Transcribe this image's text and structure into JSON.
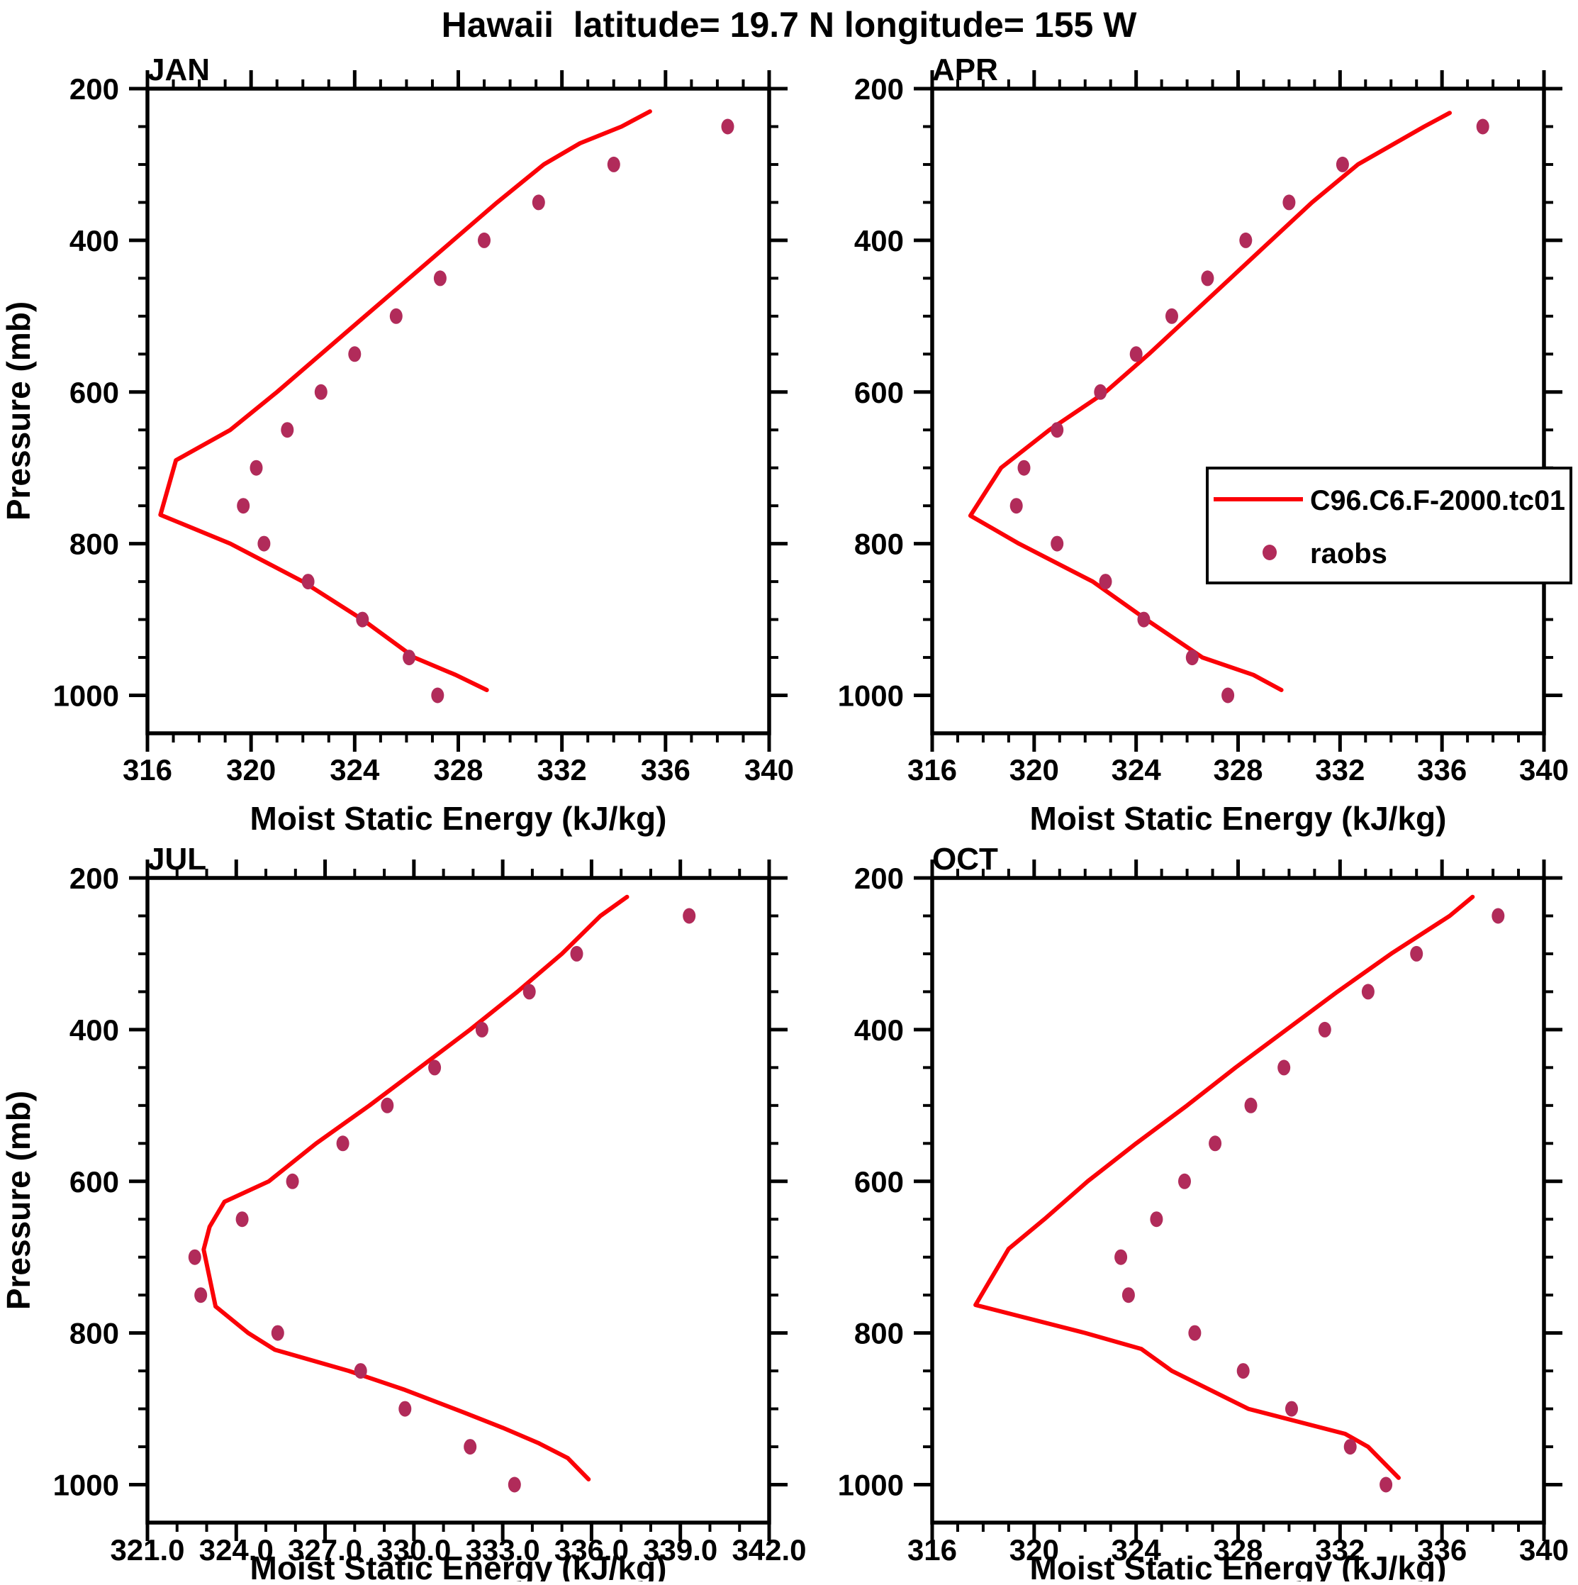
{
  "title": "Hawaii  latitude= 19.7 N longitude= 155 W",
  "colors": {
    "model_line": "#fb0007",
    "obs_marker": "#b12b5a",
    "axis": "#000000",
    "background": "#ffffff"
  },
  "legend": {
    "entries": [
      {
        "label": "C96.C6.F-2000.tc01",
        "type": "line",
        "color": "#fb0007"
      },
      {
        "label": "raobs",
        "type": "marker",
        "color": "#b12b5a"
      }
    ]
  },
  "chart_data": [
    {
      "type": "line",
      "title": "JAN",
      "xlabel": "Moist Static Energy (kJ/kg)",
      "ylabel": "Pressure (mb)",
      "xlim": [
        316,
        340
      ],
      "xtick_labels": [
        "316",
        "320",
        "324",
        "328",
        "332",
        "336",
        "340"
      ],
      "xtick_values": [
        316,
        320,
        324,
        328,
        332,
        336,
        340
      ],
      "xminor_step": 1,
      "ylim": [
        200,
        1050
      ],
      "ytick_labels": [
        "200",
        "400",
        "600",
        "800",
        "1000"
      ],
      "ytick_values": [
        200,
        400,
        600,
        800,
        1000
      ],
      "yminor_step": 50,
      "y_inverted": true,
      "grid": false,
      "show_legend": false,
      "series": [
        {
          "name": "C96.C6.F-2000.tc01",
          "type": "line",
          "points": [
            [
              230,
              335.4
            ],
            [
              250,
              334.3
            ],
            [
              272,
              332.7
            ],
            [
              300,
              331.3
            ],
            [
              350,
              329.5
            ],
            [
              400,
              327.8
            ],
            [
              450,
              326.1
            ],
            [
              500,
              324.4
            ],
            [
              550,
              322.7
            ],
            [
              600,
              321.0
            ],
            [
              650,
              319.2
            ],
            [
              690,
              317.1
            ],
            [
              762,
              316.5
            ],
            [
              800,
              319.2
            ],
            [
              850,
              322.0
            ],
            [
              900,
              324.3
            ],
            [
              950,
              326.3
            ],
            [
              973,
              327.9
            ],
            [
              993,
              329.1
            ]
          ]
        },
        {
          "name": "raobs",
          "type": "scatter",
          "pressures": [
            250,
            300,
            350,
            400,
            450,
            500,
            550,
            600,
            650,
            700,
            750,
            800,
            850,
            900,
            950,
            1000
          ],
          "values": [
            338.4,
            334.0,
            331.1,
            329.0,
            327.3,
            325.6,
            324.0,
            322.7,
            321.4,
            320.2,
            319.7,
            320.5,
            322.2,
            324.3,
            326.1,
            327.2
          ]
        }
      ]
    },
    {
      "type": "line",
      "title": "APR",
      "xlabel": "Moist Static Energy (kJ/kg)",
      "ylabel": "Pressure (mb)",
      "xlim": [
        316,
        340
      ],
      "xtick_labels": [
        "316",
        "320",
        "324",
        "328",
        "332",
        "336",
        "340"
      ],
      "xtick_values": [
        316,
        320,
        324,
        328,
        332,
        336,
        340
      ],
      "xminor_step": 1,
      "ylim": [
        200,
        1050
      ],
      "ytick_labels": [
        "200",
        "400",
        "600",
        "800",
        "1000"
      ],
      "ytick_values": [
        200,
        400,
        600,
        800,
        1000
      ],
      "yminor_step": 50,
      "y_inverted": true,
      "grid": false,
      "show_legend": true,
      "series": [
        {
          "name": "C96.C6.F-2000.tc01",
          "type": "line",
          "points": [
            [
              232,
              336.3
            ],
            [
              250,
              335.3
            ],
            [
              300,
              332.7
            ],
            [
              350,
              330.9
            ],
            [
              400,
              329.3
            ],
            [
              450,
              327.7
            ],
            [
              500,
              326.1
            ],
            [
              550,
              324.5
            ],
            [
              600,
              322.8
            ],
            [
              650,
              320.6
            ],
            [
              700,
              318.7
            ],
            [
              763,
              317.5
            ],
            [
              800,
              319.4
            ],
            [
              850,
              322.3
            ],
            [
              900,
              324.4
            ],
            [
              950,
              326.6
            ],
            [
              973,
              328.6
            ],
            [
              993,
              329.7
            ]
          ]
        },
        {
          "name": "raobs",
          "type": "scatter",
          "pressures": [
            250,
            300,
            350,
            400,
            450,
            500,
            550,
            600,
            650,
            700,
            750,
            800,
            850,
            900,
            950,
            1000
          ],
          "values": [
            337.6,
            332.1,
            330.0,
            328.3,
            326.8,
            325.4,
            324.0,
            322.6,
            320.9,
            319.6,
            319.3,
            320.9,
            322.8,
            324.3,
            326.2,
            327.6
          ]
        }
      ]
    },
    {
      "type": "line",
      "title": "JUL",
      "xlabel": "Moist Static Energy (kJ/kg)",
      "ylabel": "Pressure (mb)",
      "xlim": [
        321,
        342
      ],
      "xtick_labels": [
        "321.0",
        "324.0",
        "327.0",
        "330.0",
        "333.0",
        "336.0",
        "339.0",
        "342.0"
      ],
      "xtick_values": [
        321,
        324,
        327,
        330,
        333,
        336,
        339,
        342
      ],
      "xminor_step": 1,
      "ylim": [
        200,
        1050
      ],
      "ytick_labels": [
        "200",
        "400",
        "600",
        "800",
        "1000"
      ],
      "ytick_values": [
        200,
        400,
        600,
        800,
        1000
      ],
      "yminor_step": 50,
      "y_inverted": true,
      "grid": false,
      "show_legend": false,
      "series": [
        {
          "name": "C96.C6.F-2000.tc01",
          "type": "line",
          "points": [
            [
              225,
              337.2
            ],
            [
              250,
              336.3
            ],
            [
              300,
              335.0
            ],
            [
              350,
              333.5
            ],
            [
              400,
              331.9
            ],
            [
              450,
              330.2
            ],
            [
              500,
              328.5
            ],
            [
              550,
              326.7
            ],
            [
              600,
              325.1
            ],
            [
              627,
              323.6
            ],
            [
              660,
              323.1
            ],
            [
              690,
              322.9
            ],
            [
              765,
              323.3
            ],
            [
              800,
              324.4
            ],
            [
              822,
              325.3
            ],
            [
              850,
              327.8
            ],
            [
              875,
              329.7
            ],
            [
              905,
              331.7
            ],
            [
              925,
              333.0
            ],
            [
              945,
              334.2
            ],
            [
              965,
              335.2
            ],
            [
              993,
              335.9
            ]
          ]
        },
        {
          "name": "raobs",
          "type": "scatter",
          "pressures": [
            250,
            300,
            350,
            400,
            450,
            500,
            550,
            600,
            650,
            700,
            750,
            800,
            850,
            900,
            950,
            1000
          ],
          "values": [
            339.3,
            335.5,
            333.9,
            332.3,
            330.7,
            329.1,
            327.6,
            325.9,
            324.2,
            322.6,
            322.8,
            325.4,
            328.2,
            329.7,
            331.9,
            333.4
          ]
        }
      ]
    },
    {
      "type": "line",
      "title": "OCT",
      "xlabel": "Moist Static Energy (kJ/kg)",
      "ylabel": "Pressure (mb)",
      "xlim": [
        316,
        340
      ],
      "xtick_labels": [
        "316",
        "320",
        "324",
        "328",
        "332",
        "336",
        "340"
      ],
      "xtick_values": [
        316,
        320,
        324,
        328,
        332,
        336,
        340
      ],
      "xminor_step": 1,
      "ylim": [
        200,
        1050
      ],
      "ytick_labels": [
        "200",
        "400",
        "600",
        "800",
        "1000"
      ],
      "ytick_values": [
        200,
        400,
        600,
        800,
        1000
      ],
      "yminor_step": 50,
      "y_inverted": true,
      "grid": false,
      "show_legend": false,
      "series": [
        {
          "name": "C96.C6.F-2000.tc01",
          "type": "line",
          "points": [
            [
              225,
              337.2
            ],
            [
              250,
              336.3
            ],
            [
              300,
              334.0
            ],
            [
              350,
              331.9
            ],
            [
              400,
              329.9
            ],
            [
              450,
              327.9
            ],
            [
              500,
              326.0
            ],
            [
              550,
              324.0
            ],
            [
              600,
              322.1
            ],
            [
              650,
              320.4
            ],
            [
              689,
              319.0
            ],
            [
              763,
              317.7
            ],
            [
              800,
              322.0
            ],
            [
              821,
              324.2
            ],
            [
              850,
              325.4
            ],
            [
              900,
              328.4
            ],
            [
              933,
              332.2
            ],
            [
              950,
              333.1
            ],
            [
              991,
              334.3
            ]
          ]
        },
        {
          "name": "raobs",
          "type": "scatter",
          "pressures": [
            250,
            300,
            350,
            400,
            450,
            500,
            550,
            600,
            650,
            700,
            750,
            800,
            850,
            900,
            950,
            1000
          ],
          "values": [
            338.2,
            335.0,
            333.1,
            331.4,
            329.8,
            328.5,
            327.1,
            325.9,
            324.8,
            323.4,
            323.7,
            326.3,
            328.2,
            330.1,
            332.4,
            333.8
          ]
        }
      ]
    }
  ]
}
